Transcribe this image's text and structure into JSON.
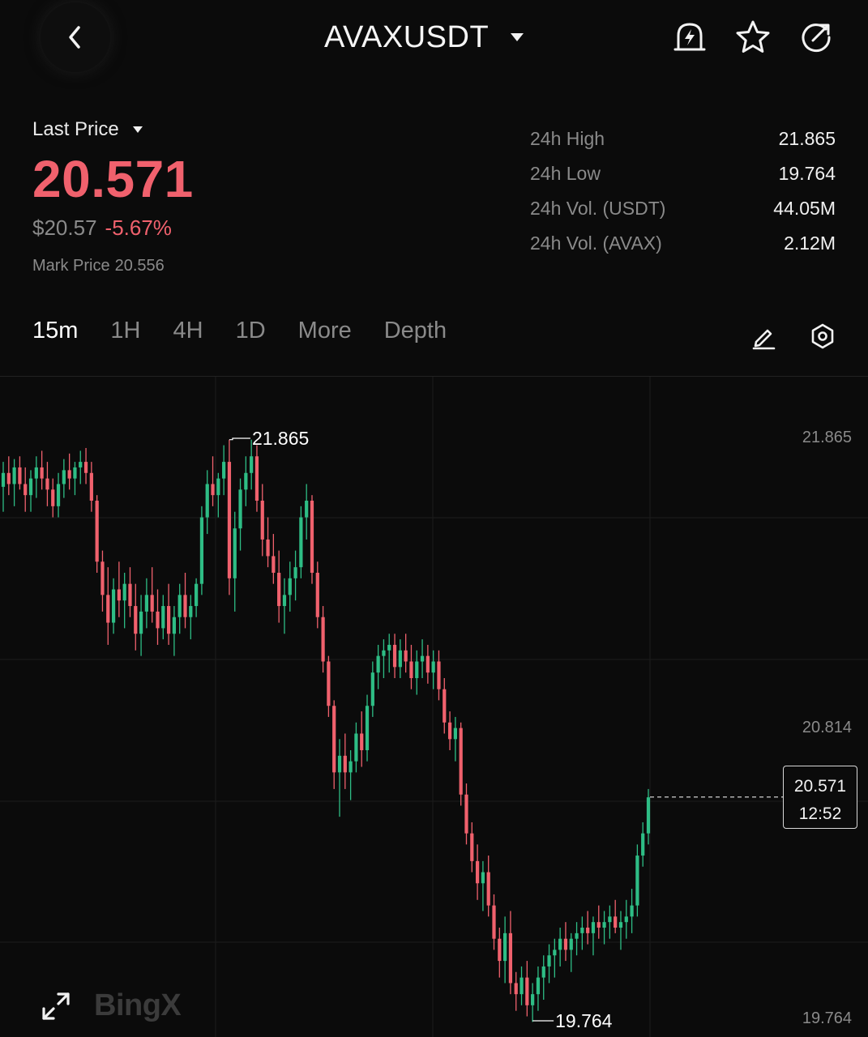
{
  "header": {
    "symbol": "AVAXUSDT",
    "icons": [
      "chevron-left-icon",
      "caret-down-icon",
      "price-alert-icon",
      "star-icon",
      "share-icon"
    ]
  },
  "price": {
    "label": "Last Price",
    "last": "20.571",
    "usd": "$20.57",
    "change": "-5.67%",
    "mark_label": "Mark Price",
    "mark": "20.556",
    "color_down": "#f0616d",
    "color_up": "#2ebd85"
  },
  "stats": [
    {
      "label": "24h High",
      "value": "21.865"
    },
    {
      "label": "24h Low",
      "value": "19.764"
    },
    {
      "label": "24h Vol. (USDT)",
      "value": "44.05M"
    },
    {
      "label": "24h Vol. (AVAX)",
      "value": "2.12M"
    }
  ],
  "tabs": [
    "15m",
    "1H",
    "4H",
    "1D",
    "More",
    "Depth"
  ],
  "active_tab": "15m",
  "chart_data": {
    "type": "candlestick",
    "interval": "15m",
    "y_axis_labels": [
      "21.865",
      "20.814",
      "19.764"
    ],
    "high_marker": "21.865",
    "low_marker": "19.764",
    "current_price": "20.571",
    "countdown": "12:52",
    "watermark": "BingX",
    "ylim": [
      19.7,
      21.95
    ],
    "candles": [
      [
        21.69,
        21.78,
        21.6,
        21.74
      ],
      [
        21.74,
        21.8,
        21.66,
        21.7
      ],
      [
        21.7,
        21.79,
        21.62,
        21.76
      ],
      [
        21.76,
        21.8,
        21.68,
        21.7
      ],
      [
        21.7,
        21.76,
        21.6,
        21.66
      ],
      [
        21.66,
        21.75,
        21.6,
        21.72
      ],
      [
        21.72,
        21.8,
        21.65,
        21.76
      ],
      [
        21.76,
        21.82,
        21.68,
        21.72
      ],
      [
        21.72,
        21.78,
        21.62,
        21.68
      ],
      [
        21.68,
        21.72,
        21.58,
        21.62
      ],
      [
        21.62,
        21.74,
        21.58,
        21.7
      ],
      [
        21.7,
        21.79,
        21.65,
        21.75
      ],
      [
        21.75,
        21.81,
        21.68,
        21.72
      ],
      [
        21.72,
        21.78,
        21.66,
        21.76
      ],
      [
        21.76,
        21.82,
        21.7,
        21.78
      ],
      [
        21.78,
        21.83,
        21.7,
        21.74
      ],
      [
        21.74,
        21.78,
        21.6,
        21.64
      ],
      [
        21.64,
        21.66,
        21.38,
        21.42
      ],
      [
        21.42,
        21.46,
        21.24,
        21.3
      ],
      [
        21.3,
        21.4,
        21.12,
        21.2
      ],
      [
        21.2,
        21.36,
        21.16,
        21.32
      ],
      [
        21.32,
        21.42,
        21.22,
        21.28
      ],
      [
        21.28,
        21.38,
        21.18,
        21.34
      ],
      [
        21.34,
        21.4,
        21.22,
        21.26
      ],
      [
        21.26,
        21.34,
        21.1,
        21.16
      ],
      [
        21.16,
        21.3,
        21.08,
        21.24
      ],
      [
        21.24,
        21.36,
        21.18,
        21.3
      ],
      [
        21.3,
        21.4,
        21.2,
        21.24
      ],
      [
        21.24,
        21.32,
        21.12,
        21.18
      ],
      [
        21.18,
        21.3,
        21.14,
        21.26
      ],
      [
        21.26,
        21.34,
        21.12,
        21.16
      ],
      [
        21.16,
        21.26,
        21.08,
        21.22
      ],
      [
        21.22,
        21.34,
        21.16,
        21.3
      ],
      [
        21.3,
        21.38,
        21.18,
        21.22
      ],
      [
        21.22,
        21.3,
        21.14,
        21.26
      ],
      [
        21.26,
        21.36,
        21.22,
        21.34
      ],
      [
        21.34,
        21.62,
        21.3,
        21.58
      ],
      [
        21.58,
        21.75,
        21.52,
        21.7
      ],
      [
        21.7,
        21.8,
        21.62,
        21.66
      ],
      [
        21.66,
        21.74,
        21.58,
        21.72
      ],
      [
        21.72,
        21.84,
        21.66,
        21.78
      ],
      [
        21.78,
        21.86,
        21.3,
        21.36
      ],
      [
        21.36,
        21.6,
        21.24,
        21.54
      ],
      [
        21.54,
        21.72,
        21.46,
        21.68
      ],
      [
        21.68,
        21.8,
        21.62,
        21.74
      ],
      [
        21.74,
        21.86,
        21.68,
        21.8
      ],
      [
        21.8,
        21.84,
        21.6,
        21.64
      ],
      [
        21.64,
        21.7,
        21.44,
        21.5
      ],
      [
        21.5,
        21.58,
        21.4,
        21.44
      ],
      [
        21.44,
        21.52,
        21.34,
        21.38
      ],
      [
        21.38,
        21.46,
        21.2,
        21.26
      ],
      [
        21.26,
        21.36,
        21.16,
        21.3
      ],
      [
        21.3,
        21.42,
        21.24,
        21.36
      ],
      [
        21.36,
        21.46,
        21.28,
        21.4
      ],
      [
        21.4,
        21.62,
        21.36,
        21.58
      ],
      [
        21.58,
        21.7,
        21.5,
        21.64
      ],
      [
        21.64,
        21.66,
        21.34,
        21.38
      ],
      [
        21.38,
        21.42,
        21.18,
        21.22
      ],
      [
        21.22,
        21.26,
        21.02,
        21.06
      ],
      [
        21.06,
        21.08,
        20.86,
        20.9
      ],
      [
        20.9,
        20.92,
        20.6,
        20.66
      ],
      [
        20.66,
        20.78,
        20.5,
        20.72
      ],
      [
        20.72,
        20.8,
        20.6,
        20.66
      ],
      [
        20.66,
        20.74,
        20.56,
        20.7
      ],
      [
        20.7,
        20.84,
        20.66,
        20.8
      ],
      [
        20.8,
        20.88,
        20.68,
        20.74
      ],
      [
        20.74,
        20.94,
        20.7,
        20.9
      ],
      [
        20.9,
        21.06,
        20.86,
        21.02
      ],
      [
        21.02,
        21.12,
        20.96,
        21.08
      ],
      [
        21.08,
        21.14,
        21.0,
        21.1
      ],
      [
        21.1,
        21.16,
        21.02,
        21.12
      ],
      [
        21.12,
        21.16,
        21.0,
        21.04
      ],
      [
        21.04,
        21.14,
        21.0,
        21.1
      ],
      [
        21.1,
        21.16,
        21.02,
        21.06
      ],
      [
        21.06,
        21.12,
        20.96,
        21.0
      ],
      [
        21.0,
        21.1,
        20.94,
        21.06
      ],
      [
        21.06,
        21.14,
        21.0,
        21.08
      ],
      [
        21.08,
        21.12,
        20.98,
        21.02
      ],
      [
        21.02,
        21.1,
        20.96,
        21.06
      ],
      [
        21.06,
        21.1,
        20.92,
        20.96
      ],
      [
        20.96,
        21.0,
        20.8,
        20.84
      ],
      [
        20.84,
        20.88,
        20.74,
        20.78
      ],
      [
        20.78,
        20.86,
        20.7,
        20.82
      ],
      [
        20.82,
        20.84,
        20.54,
        20.58
      ],
      [
        20.58,
        20.62,
        20.4,
        20.44
      ],
      [
        20.44,
        20.48,
        20.3,
        20.34
      ],
      [
        20.34,
        20.4,
        20.2,
        20.26
      ],
      [
        20.26,
        20.34,
        20.16,
        20.3
      ],
      [
        20.3,
        20.36,
        20.14,
        20.18
      ],
      [
        20.18,
        20.22,
        20.02,
        20.06
      ],
      [
        20.06,
        20.1,
        19.92,
        19.98
      ],
      [
        19.98,
        20.14,
        19.9,
        20.08
      ],
      [
        20.08,
        20.16,
        19.86,
        19.9
      ],
      [
        19.9,
        19.94,
        19.8,
        19.86
      ],
      [
        19.86,
        19.96,
        19.82,
        19.92
      ],
      [
        19.92,
        19.98,
        19.78,
        19.82
      ],
      [
        19.82,
        19.9,
        19.76,
        19.86
      ],
      [
        19.86,
        19.96,
        19.8,
        19.92
      ],
      [
        19.92,
        20.0,
        19.84,
        19.96
      ],
      [
        19.96,
        20.04,
        19.9,
        20.0
      ],
      [
        20.0,
        20.06,
        19.92,
        20.02
      ],
      [
        20.02,
        20.1,
        19.96,
        20.06
      ],
      [
        20.06,
        20.12,
        19.98,
        20.02
      ],
      [
        20.02,
        20.08,
        19.94,
        20.06
      ],
      [
        20.06,
        20.12,
        20.0,
        20.08
      ],
      [
        20.08,
        20.14,
        20.02,
        20.1
      ],
      [
        20.1,
        20.16,
        20.04,
        20.08
      ],
      [
        20.08,
        20.14,
        20.0,
        20.12
      ],
      [
        20.12,
        20.18,
        20.06,
        20.1
      ],
      [
        20.1,
        20.16,
        20.04,
        20.12
      ],
      [
        20.12,
        20.18,
        20.06,
        20.14
      ],
      [
        20.14,
        20.2,
        20.08,
        20.1
      ],
      [
        20.1,
        20.16,
        20.02,
        20.12
      ],
      [
        20.12,
        20.2,
        20.06,
        20.14
      ],
      [
        20.14,
        20.24,
        20.08,
        20.18
      ],
      [
        20.18,
        20.4,
        20.14,
        20.36
      ],
      [
        20.36,
        20.48,
        20.32,
        20.44
      ],
      [
        20.44,
        20.6,
        20.4,
        20.57
      ]
    ]
  }
}
